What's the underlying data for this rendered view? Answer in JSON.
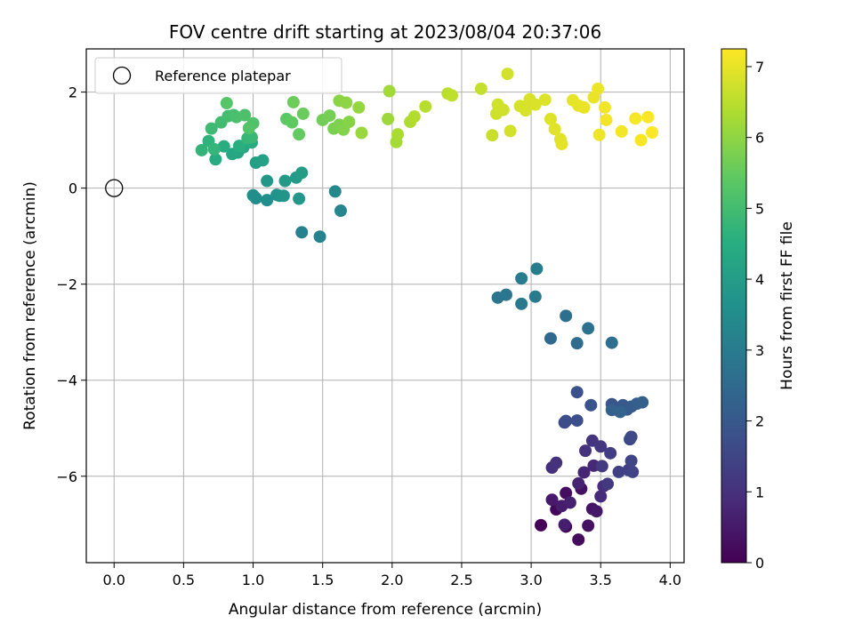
{
  "chart_data": {
    "type": "scatter",
    "title": "FOV centre drift starting at 2023/08/04 20:37:06",
    "xlabel": "Angular distance from reference (arcmin)",
    "ylabel": "Rotation from reference (arcmin)",
    "xlim": [
      -0.2,
      4.1
    ],
    "ylim": [
      -7.8,
      2.9
    ],
    "xticks": [
      0.0,
      0.5,
      1.0,
      1.5,
      2.0,
      2.5,
      3.0,
      3.5,
      4.0
    ],
    "xtick_labels": [
      "0.0",
      "0.5",
      "1.0",
      "1.5",
      "2.0",
      "2.5",
      "3.0",
      "3.5",
      "4.0"
    ],
    "yticks": [
      2,
      0,
      -2,
      -4,
      -6
    ],
    "ytick_labels": [
      "2",
      "0",
      "−2",
      "−4",
      "−6"
    ],
    "grid": true,
    "legend": {
      "placement": "top-left",
      "entries": [
        "Reference platepar"
      ]
    },
    "reference_point": {
      "x": 0.0,
      "y": 0.0
    },
    "colorbar": {
      "label": "Hours from first FF file",
      "colormap": "viridis",
      "range": [
        0,
        7.25
      ],
      "ticks": [
        0,
        1,
        2,
        3,
        4,
        5,
        6,
        7
      ],
      "tick_labels": [
        "0",
        "1",
        "2",
        "3",
        "4",
        "5",
        "6",
        "7"
      ]
    },
    "points": [
      {
        "x": 3.07,
        "y": -7.02,
        "c": 0.05
      },
      {
        "x": 3.18,
        "y": -6.69,
        "c": 0.1
      },
      {
        "x": 3.25,
        "y": -7.05,
        "c": 0.15
      },
      {
        "x": 3.34,
        "y": -7.32,
        "c": 0.2
      },
      {
        "x": 3.25,
        "y": -6.35,
        "c": 0.25
      },
      {
        "x": 3.36,
        "y": -6.26,
        "c": 0.3
      },
      {
        "x": 3.41,
        "y": -7.03,
        "c": 0.35
      },
      {
        "x": 3.44,
        "y": -6.68,
        "c": 0.4
      },
      {
        "x": 3.47,
        "y": -6.73,
        "c": 0.45
      },
      {
        "x": 3.15,
        "y": -6.49,
        "c": 0.5
      },
      {
        "x": 3.22,
        "y": -6.62,
        "c": 0.55
      },
      {
        "x": 3.24,
        "y": -7.01,
        "c": 0.6
      },
      {
        "x": 3.28,
        "y": -6.55,
        "c": 0.65
      },
      {
        "x": 3.34,
        "y": -6.15,
        "c": 0.7
      },
      {
        "x": 3.38,
        "y": -5.92,
        "c": 0.75
      },
      {
        "x": 3.45,
        "y": -5.78,
        "c": 0.8
      },
      {
        "x": 3.5,
        "y": -6.42,
        "c": 0.85
      },
      {
        "x": 3.52,
        "y": -6.21,
        "c": 0.9
      },
      {
        "x": 3.15,
        "y": -5.82,
        "c": 0.95
      },
      {
        "x": 3.18,
        "y": -5.72,
        "c": 1.0
      },
      {
        "x": 3.39,
        "y": -5.47,
        "c": 1.05
      },
      {
        "x": 3.44,
        "y": -5.26,
        "c": 1.1
      },
      {
        "x": 3.5,
        "y": -5.38,
        "c": 1.15
      },
      {
        "x": 3.55,
        "y": -6.16,
        "c": 1.2
      },
      {
        "x": 3.51,
        "y": -5.79,
        "c": 1.25
      },
      {
        "x": 3.57,
        "y": -5.52,
        "c": 1.3
      },
      {
        "x": 3.63,
        "y": -5.91,
        "c": 1.35
      },
      {
        "x": 3.7,
        "y": -5.87,
        "c": 1.4
      },
      {
        "x": 3.73,
        "y": -5.91,
        "c": 1.45
      },
      {
        "x": 3.72,
        "y": -5.68,
        "c": 1.5
      },
      {
        "x": 3.71,
        "y": -5.23,
        "c": 1.55
      },
      {
        "x": 3.72,
        "y": -5.18,
        "c": 1.6
      },
      {
        "x": 3.24,
        "y": -4.88,
        "c": 1.65
      },
      {
        "x": 3.25,
        "y": -4.85,
        "c": 1.7
      },
      {
        "x": 3.33,
        "y": -4.84,
        "c": 1.75
      },
      {
        "x": 3.33,
        "y": -4.25,
        "c": 1.8
      },
      {
        "x": 3.43,
        "y": -4.52,
        "c": 1.85
      },
      {
        "x": 3.58,
        "y": -4.5,
        "c": 1.9
      },
      {
        "x": 3.62,
        "y": -4.62,
        "c": 1.95
      },
      {
        "x": 3.66,
        "y": -4.52,
        "c": 2.0
      },
      {
        "x": 3.69,
        "y": -4.61,
        "c": 2.05
      },
      {
        "x": 3.72,
        "y": -4.55,
        "c": 2.1
      },
      {
        "x": 3.76,
        "y": -4.49,
        "c": 2.15
      },
      {
        "x": 3.8,
        "y": -4.46,
        "c": 2.2
      },
      {
        "x": 3.58,
        "y": -4.62,
        "c": 2.25
      },
      {
        "x": 3.64,
        "y": -4.66,
        "c": 2.3
      },
      {
        "x": 3.14,
        "y": -3.13,
        "c": 2.45
      },
      {
        "x": 3.33,
        "y": -3.23,
        "c": 2.55
      },
      {
        "x": 3.58,
        "y": -3.22,
        "c": 2.6
      },
      {
        "x": 3.25,
        "y": -2.66,
        "c": 2.65
      },
      {
        "x": 3.41,
        "y": -2.92,
        "c": 2.7
      },
      {
        "x": 2.76,
        "y": -2.28,
        "c": 2.8
      },
      {
        "x": 2.82,
        "y": -2.22,
        "c": 2.85
      },
      {
        "x": 2.93,
        "y": -2.41,
        "c": 2.9
      },
      {
        "x": 3.03,
        "y": -2.26,
        "c": 2.95
      },
      {
        "x": 2.93,
        "y": -1.88,
        "c": 3.0
      },
      {
        "x": 3.04,
        "y": -1.68,
        "c": 3.05
      },
      {
        "x": 1.35,
        "y": -0.92,
        "c": 3.15
      },
      {
        "x": 1.48,
        "y": -1.01,
        "c": 3.2
      },
      {
        "x": 1.63,
        "y": -0.47,
        "c": 3.3
      },
      {
        "x": 1.59,
        "y": -0.07,
        "c": 3.35
      },
      {
        "x": 1.0,
        "y": -0.15,
        "c": 3.5
      },
      {
        "x": 1.02,
        "y": -0.21,
        "c": 3.55
      },
      {
        "x": 1.1,
        "y": -0.25,
        "c": 3.6
      },
      {
        "x": 1.17,
        "y": -0.14,
        "c": 3.65
      },
      {
        "x": 1.19,
        "y": -0.16,
        "c": 3.7
      },
      {
        "x": 1.22,
        "y": -0.16,
        "c": 3.75
      },
      {
        "x": 1.33,
        "y": -0.22,
        "c": 3.8
      },
      {
        "x": 1.1,
        "y": 0.15,
        "c": 3.85
      },
      {
        "x": 1.23,
        "y": 0.15,
        "c": 3.9
      },
      {
        "x": 1.31,
        "y": 0.22,
        "c": 3.95
      },
      {
        "x": 1.35,
        "y": 0.32,
        "c": 4.0
      },
      {
        "x": 1.02,
        "y": 0.53,
        "c": 4.05
      },
      {
        "x": 1.07,
        "y": 0.58,
        "c": 4.1
      },
      {
        "x": 0.89,
        "y": 0.74,
        "c": 4.25
      },
      {
        "x": 0.85,
        "y": 0.71,
        "c": 4.3
      },
      {
        "x": 0.93,
        "y": 0.85,
        "c": 4.35
      },
      {
        "x": 0.99,
        "y": 0.95,
        "c": 4.4
      },
      {
        "x": 0.73,
        "y": 0.6,
        "c": 4.45
      },
      {
        "x": 0.79,
        "y": 0.87,
        "c": 4.5
      },
      {
        "x": 0.9,
        "y": 0.88,
        "c": 4.55
      },
      {
        "x": 0.68,
        "y": 0.98,
        "c": 4.65
      },
      {
        "x": 0.63,
        "y": 0.79,
        "c": 4.7
      },
      {
        "x": 0.72,
        "y": 0.81,
        "c": 4.75
      },
      {
        "x": 0.96,
        "y": 1.04,
        "c": 4.8
      },
      {
        "x": 0.99,
        "y": 1.06,
        "c": 4.85
      },
      {
        "x": 0.7,
        "y": 1.24,
        "c": 4.9
      },
      {
        "x": 0.77,
        "y": 1.37,
        "c": 4.95
      },
      {
        "x": 0.82,
        "y": 1.5,
        "c": 5.0
      },
      {
        "x": 0.86,
        "y": 1.52,
        "c": 5.05
      },
      {
        "x": 0.88,
        "y": 1.48,
        "c": 5.1
      },
      {
        "x": 0.94,
        "y": 1.52,
        "c": 5.15
      },
      {
        "x": 1.0,
        "y": 1.35,
        "c": 5.2
      },
      {
        "x": 0.97,
        "y": 1.25,
        "c": 5.25
      },
      {
        "x": 0.81,
        "y": 1.77,
        "c": 5.3
      },
      {
        "x": 1.24,
        "y": 1.44,
        "c": 5.4
      },
      {
        "x": 1.28,
        "y": 1.37,
        "c": 5.45
      },
      {
        "x": 1.33,
        "y": 1.12,
        "c": 5.5
      },
      {
        "x": 1.36,
        "y": 1.55,
        "c": 5.55
      },
      {
        "x": 1.29,
        "y": 1.79,
        "c": 5.6
      },
      {
        "x": 1.5,
        "y": 1.42,
        "c": 5.65
      },
      {
        "x": 1.55,
        "y": 1.51,
        "c": 5.7
      },
      {
        "x": 1.58,
        "y": 1.24,
        "c": 5.75
      },
      {
        "x": 1.62,
        "y": 1.32,
        "c": 5.8
      },
      {
        "x": 1.65,
        "y": 1.22,
        "c": 5.85
      },
      {
        "x": 1.69,
        "y": 1.38,
        "c": 5.9
      },
      {
        "x": 1.62,
        "y": 1.82,
        "c": 5.95
      },
      {
        "x": 1.67,
        "y": 1.78,
        "c": 6.0
      },
      {
        "x": 1.76,
        "y": 1.68,
        "c": 6.05
      },
      {
        "x": 1.78,
        "y": 1.15,
        "c": 6.1
      },
      {
        "x": 1.97,
        "y": 1.44,
        "c": 6.15
      },
      {
        "x": 1.98,
        "y": 2.02,
        "c": 6.2
      },
      {
        "x": 2.03,
        "y": 0.96,
        "c": 6.25
      },
      {
        "x": 2.04,
        "y": 1.12,
        "c": 6.3
      },
      {
        "x": 2.13,
        "y": 1.38,
        "c": 6.35
      },
      {
        "x": 2.16,
        "y": 1.49,
        "c": 6.4
      },
      {
        "x": 2.24,
        "y": 1.7,
        "c": 6.45
      },
      {
        "x": 2.4,
        "y": 1.97,
        "c": 6.5
      },
      {
        "x": 2.43,
        "y": 1.93,
        "c": 6.55
      },
      {
        "x": 2.64,
        "y": 2.07,
        "c": 6.6
      },
      {
        "x": 2.72,
        "y": 1.1,
        "c": 6.65
      },
      {
        "x": 2.75,
        "y": 1.55,
        "c": 6.7
      },
      {
        "x": 2.76,
        "y": 1.74,
        "c": 6.72
      },
      {
        "x": 2.8,
        "y": 1.63,
        "c": 6.74
      },
      {
        "x": 2.83,
        "y": 2.38,
        "c": 6.76
      },
      {
        "x": 2.85,
        "y": 1.19,
        "c": 6.78
      },
      {
        "x": 2.92,
        "y": 1.71,
        "c": 6.8
      },
      {
        "x": 2.96,
        "y": 1.62,
        "c": 6.82
      },
      {
        "x": 2.99,
        "y": 1.85,
        "c": 6.84
      },
      {
        "x": 3.03,
        "y": 1.74,
        "c": 6.86
      },
      {
        "x": 3.1,
        "y": 1.84,
        "c": 6.88
      },
      {
        "x": 3.14,
        "y": 1.44,
        "c": 6.9
      },
      {
        "x": 3.17,
        "y": 1.23,
        "c": 6.92
      },
      {
        "x": 3.21,
        "y": 1.02,
        "c": 6.94
      },
      {
        "x": 3.22,
        "y": 0.92,
        "c": 6.96
      },
      {
        "x": 3.3,
        "y": 1.83,
        "c": 6.98
      },
      {
        "x": 3.34,
        "y": 1.72,
        "c": 7.0
      },
      {
        "x": 3.38,
        "y": 1.68,
        "c": 7.02
      },
      {
        "x": 3.45,
        "y": 1.89,
        "c": 7.04
      },
      {
        "x": 3.48,
        "y": 2.07,
        "c": 7.06
      },
      {
        "x": 3.49,
        "y": 1.11,
        "c": 7.08
      },
      {
        "x": 3.53,
        "y": 1.68,
        "c": 7.1
      },
      {
        "x": 3.54,
        "y": 1.42,
        "c": 7.12
      },
      {
        "x": 3.65,
        "y": 1.18,
        "c": 7.14
      },
      {
        "x": 3.75,
        "y": 1.45,
        "c": 7.16
      },
      {
        "x": 3.79,
        "y": 1.0,
        "c": 7.18
      },
      {
        "x": 3.84,
        "y": 1.48,
        "c": 7.2
      },
      {
        "x": 3.87,
        "y": 1.16,
        "c": 7.22
      }
    ]
  }
}
